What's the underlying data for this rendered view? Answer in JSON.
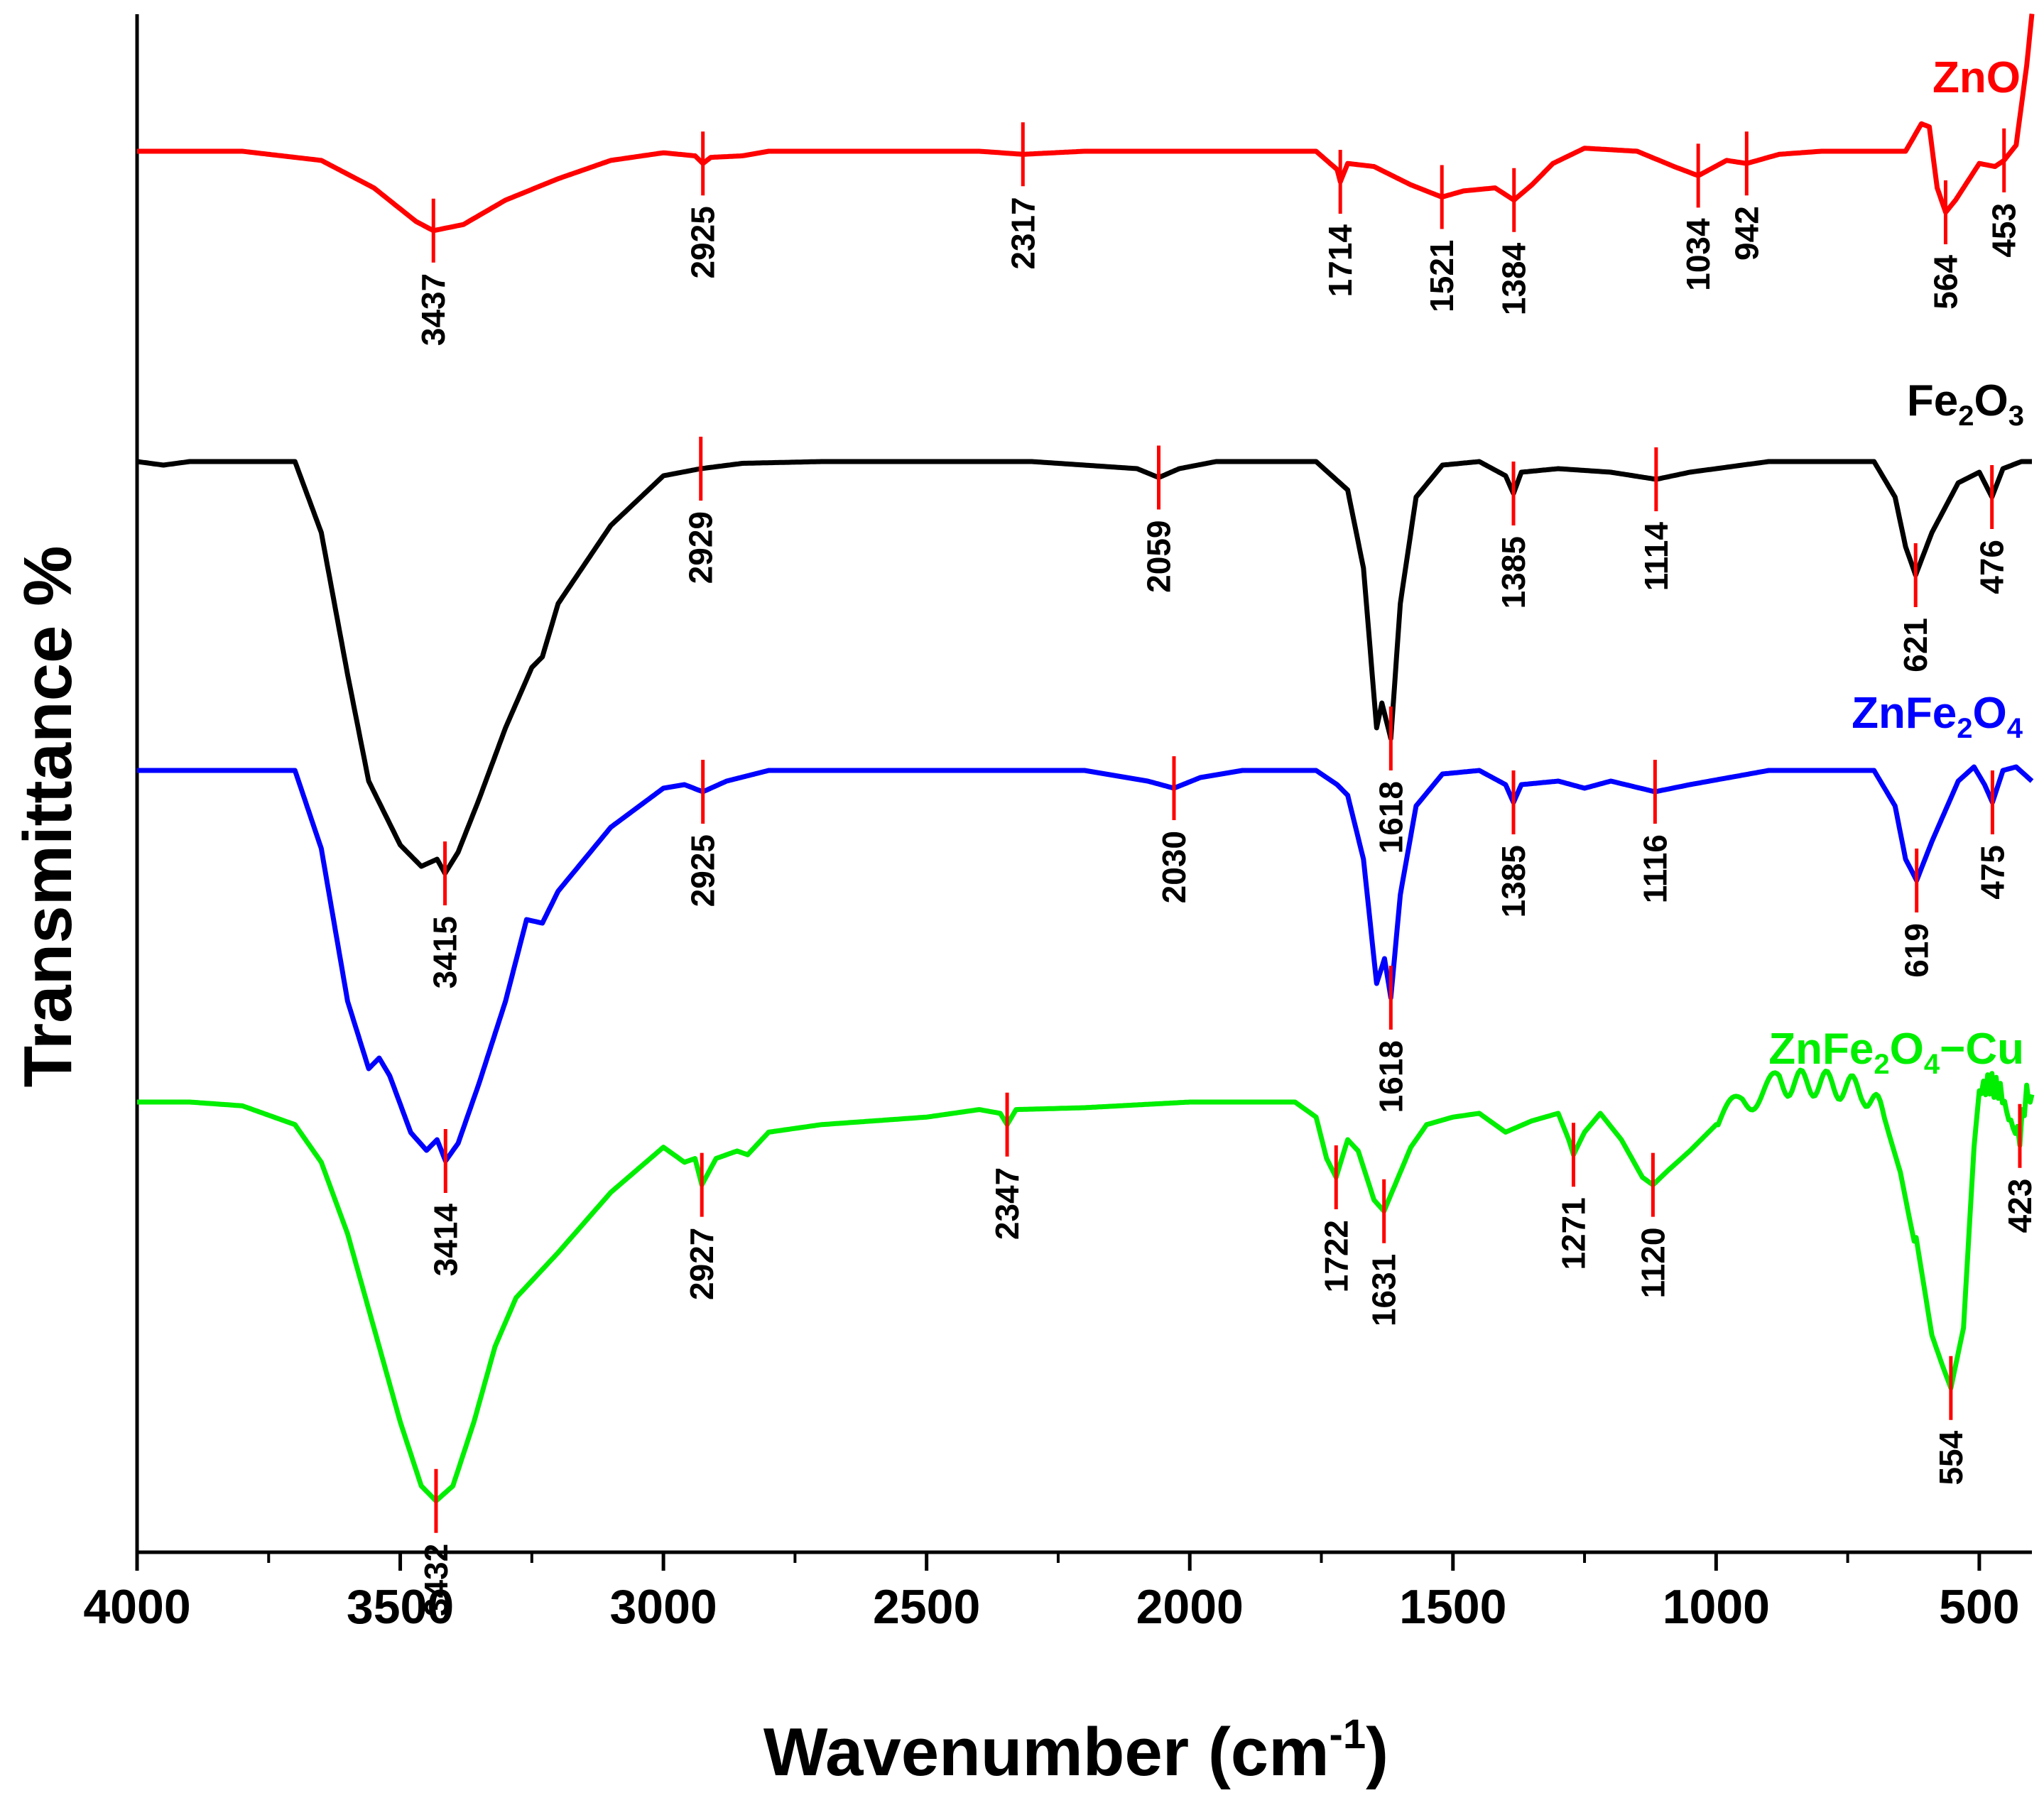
{
  "chart_data": {
    "type": "line",
    "title": "",
    "xlabel_main": "Wavenumber (cm",
    "xlabel_sup": "-1",
    "xlabel_close": ")",
    "ylabel": "Transmittance %",
    "xlim": [
      4000,
      400
    ],
    "x_ticks": [
      4000,
      3500,
      3000,
      2500,
      2000,
      1500,
      1000,
      500
    ],
    "x_tick_labels": [
      "4000",
      "3500",
      "3000",
      "2500",
      "2000",
      "1500",
      "1000",
      "500"
    ],
    "y_ticks_shown": false,
    "series": [
      {
        "name": "ZnO",
        "label_parts": [
          {
            "t": "ZnO",
            "sub": false
          }
        ],
        "color": "#ff0000",
        "points": [
          [
            4000,
            0.0
          ],
          [
            3800,
            0.0
          ],
          [
            3650,
            -0.3
          ],
          [
            3550,
            -1.2
          ],
          [
            3470,
            -2.3
          ],
          [
            3437,
            -2.6
          ],
          [
            3380,
            -2.4
          ],
          [
            3300,
            -1.6
          ],
          [
            3200,
            -0.9
          ],
          [
            3100,
            -0.3
          ],
          [
            3000,
            -0.05
          ],
          [
            2940,
            -0.15
          ],
          [
            2925,
            -0.4
          ],
          [
            2910,
            -0.2
          ],
          [
            2850,
            -0.15
          ],
          [
            2800,
            0.0
          ],
          [
            2400,
            0.0
          ],
          [
            2317,
            -0.1
          ],
          [
            2200,
            0.0
          ],
          [
            1760,
            0.0
          ],
          [
            1720,
            -0.6
          ],
          [
            1714,
            -1.0
          ],
          [
            1700,
            -0.4
          ],
          [
            1650,
            -0.5
          ],
          [
            1580,
            -1.1
          ],
          [
            1521,
            -1.5
          ],
          [
            1480,
            -1.3
          ],
          [
            1420,
            -1.2
          ],
          [
            1384,
            -1.6
          ],
          [
            1350,
            -1.1
          ],
          [
            1310,
            -0.4
          ],
          [
            1250,
            0.1
          ],
          [
            1150,
            0.0
          ],
          [
            1080,
            -0.5
          ],
          [
            1034,
            -0.8
          ],
          [
            980,
            -0.3
          ],
          [
            942,
            -0.4
          ],
          [
            880,
            -0.1
          ],
          [
            800,
            0.0
          ],
          [
            700,
            0.0
          ],
          [
            640,
            0.0
          ],
          [
            610,
            0.9
          ],
          [
            595,
            0.8
          ],
          [
            580,
            -1.2
          ],
          [
            564,
            -2.0
          ],
          [
            545,
            -1.6
          ],
          [
            500,
            -0.4
          ],
          [
            470,
            -0.5
          ],
          [
            453,
            -0.3
          ],
          [
            430,
            0.2
          ],
          [
            410,
            2.8
          ],
          [
            400,
            4.5
          ]
        ],
        "peaks": [
          {
            "x": 3437,
            "label": "3437"
          },
          {
            "x": 2925,
            "label": "2925"
          },
          {
            "x": 2317,
            "label": "2317"
          },
          {
            "x": 1714,
            "label": "1714"
          },
          {
            "x": 1521,
            "label": "1521"
          },
          {
            "x": 1384,
            "label": "1384"
          },
          {
            "x": 1034,
            "label": "1034"
          },
          {
            "x": 942,
            "label": "942"
          },
          {
            "x": 564,
            "label": "564"
          },
          {
            "x": 453,
            "label": "453"
          }
        ]
      },
      {
        "name": "Fe2O3",
        "label_parts": [
          {
            "t": "Fe",
            "sub": false
          },
          {
            "t": "2",
            "sub": true
          },
          {
            "t": "O",
            "sub": false
          },
          {
            "t": "3",
            "sub": true
          }
        ],
        "color": "#000000",
        "points": [
          [
            4000,
            0.0
          ],
          [
            3950,
            -0.1
          ],
          [
            3900,
            0.0
          ],
          [
            3700,
            0.0
          ],
          [
            3650,
            -2.0
          ],
          [
            3600,
            -6.0
          ],
          [
            3560,
            -9.0
          ],
          [
            3540,
            -9.6
          ],
          [
            3500,
            -10.8
          ],
          [
            3460,
            -11.4
          ],
          [
            3430,
            -11.2
          ],
          [
            3415,
            -11.6
          ],
          [
            3390,
            -11.0
          ],
          [
            3350,
            -9.5
          ],
          [
            3300,
            -7.5
          ],
          [
            3250,
            -5.8
          ],
          [
            3230,
            -5.5
          ],
          [
            3200,
            -4.0
          ],
          [
            3100,
            -1.8
          ],
          [
            3000,
            -0.4
          ],
          [
            2929,
            -0.2
          ],
          [
            2850,
            -0.05
          ],
          [
            2700,
            0.0
          ],
          [
            2300,
            0.0
          ],
          [
            2100,
            -0.2
          ],
          [
            2059,
            -0.45
          ],
          [
            2020,
            -0.2
          ],
          [
            1950,
            0.0
          ],
          [
            1760,
            0.0
          ],
          [
            1700,
            -0.8
          ],
          [
            1670,
            -3.0
          ],
          [
            1645,
            -7.5
          ],
          [
            1635,
            -6.8
          ],
          [
            1618,
            -7.8
          ],
          [
            1600,
            -4.0
          ],
          [
            1570,
            -1.0
          ],
          [
            1520,
            -0.1
          ],
          [
            1450,
            0.0
          ],
          [
            1400,
            -0.4
          ],
          [
            1385,
            -0.9
          ],
          [
            1370,
            -0.3
          ],
          [
            1300,
            -0.2
          ],
          [
            1200,
            -0.3
          ],
          [
            1114,
            -0.5
          ],
          [
            1050,
            -0.3
          ],
          [
            900,
            0.0
          ],
          [
            700,
            0.0
          ],
          [
            660,
            -1.0
          ],
          [
            640,
            -2.4
          ],
          [
            621,
            -3.2
          ],
          [
            590,
            -2.0
          ],
          [
            540,
            -0.6
          ],
          [
            500,
            -0.3
          ],
          [
            476,
            -1.0
          ],
          [
            455,
            -0.2
          ],
          [
            420,
            0.0
          ],
          [
            400,
            0.0
          ]
        ],
        "peaks": [
          {
            "x": 3415,
            "label": "3415"
          },
          {
            "x": 2929,
            "label": "2929"
          },
          {
            "x": 2059,
            "label": "2059"
          },
          {
            "x": 1618,
            "label": "1618"
          },
          {
            "x": 1385,
            "label": "1385"
          },
          {
            "x": 1114,
            "label": "1114"
          },
          {
            "x": 621,
            "label": "621"
          },
          {
            "x": 476,
            "label": "476"
          }
        ]
      },
      {
        "name": "ZnFe2O4",
        "label_parts": [
          {
            "t": "ZnFe",
            "sub": false
          },
          {
            "t": "2",
            "sub": true
          },
          {
            "t": "O",
            "sub": false
          },
          {
            "t": "4",
            "sub": true
          }
        ],
        "color": "#0000ff",
        "points": [
          [
            4000,
            0.0
          ],
          [
            3900,
            0.0
          ],
          [
            3700,
            0.0
          ],
          [
            3650,
            -2.2
          ],
          [
            3600,
            -6.5
          ],
          [
            3560,
            -8.4
          ],
          [
            3540,
            -8.1
          ],
          [
            3520,
            -8.6
          ],
          [
            3480,
            -10.2
          ],
          [
            3450,
            -10.7
          ],
          [
            3430,
            -10.4
          ],
          [
            3414,
            -11.0
          ],
          [
            3390,
            -10.5
          ],
          [
            3350,
            -8.8
          ],
          [
            3300,
            -6.5
          ],
          [
            3260,
            -4.2
          ],
          [
            3230,
            -4.3
          ],
          [
            3200,
            -3.4
          ],
          [
            3100,
            -1.6
          ],
          [
            3000,
            -0.5
          ],
          [
            2960,
            -0.4
          ],
          [
            2925,
            -0.6
          ],
          [
            2880,
            -0.3
          ],
          [
            2800,
            0.0
          ],
          [
            2400,
            0.0
          ],
          [
            2200,
            0.0
          ],
          [
            2080,
            -0.3
          ],
          [
            2030,
            -0.5
          ],
          [
            1980,
            -0.2
          ],
          [
            1900,
            0.0
          ],
          [
            1760,
            0.0
          ],
          [
            1720,
            -0.4
          ],
          [
            1700,
            -0.7
          ],
          [
            1670,
            -2.5
          ],
          [
            1645,
            -6.0
          ],
          [
            1630,
            -5.3
          ],
          [
            1618,
            -6.4
          ],
          [
            1600,
            -3.5
          ],
          [
            1570,
            -1.0
          ],
          [
            1520,
            -0.1
          ],
          [
            1450,
            0.0
          ],
          [
            1400,
            -0.4
          ],
          [
            1385,
            -0.9
          ],
          [
            1370,
            -0.4
          ],
          [
            1300,
            -0.3
          ],
          [
            1250,
            -0.5
          ],
          [
            1200,
            -0.3
          ],
          [
            1116,
            -0.6
          ],
          [
            1050,
            -0.4
          ],
          [
            900,
            0.0
          ],
          [
            700,
            0.0
          ],
          [
            660,
            -1.0
          ],
          [
            640,
            -2.5
          ],
          [
            619,
            -3.1
          ],
          [
            590,
            -2.0
          ],
          [
            540,
            -0.3
          ],
          [
            510,
            0.1
          ],
          [
            490,
            -0.4
          ],
          [
            475,
            -0.9
          ],
          [
            455,
            0.0
          ],
          [
            430,
            0.1
          ],
          [
            400,
            -0.3
          ]
        ],
        "peaks": [
          {
            "x": 3414,
            "label": "3414"
          },
          {
            "x": 2925,
            "label": "2925"
          },
          {
            "x": 2030,
            "label": "2030"
          },
          {
            "x": 1618,
            "label": "1618"
          },
          {
            "x": 1385,
            "label": "1385"
          },
          {
            "x": 1116,
            "label": "1116"
          },
          {
            "x": 619,
            "label": "619"
          },
          {
            "x": 475,
            "label": "475"
          }
        ]
      },
      {
        "name": "ZnFe2O4-Cu",
        "label_parts": [
          {
            "t": "ZnFe",
            "sub": false
          },
          {
            "t": "2",
            "sub": true
          },
          {
            "t": "O",
            "sub": false
          },
          {
            "t": "4",
            "sub": true
          },
          {
            "t": "−Cu",
            "sub": false
          }
        ],
        "color": "#00ee00",
        "points": [
          [
            4000,
            0.0
          ],
          [
            3900,
            0.0
          ],
          [
            3800,
            -0.1
          ],
          [
            3700,
            -0.6
          ],
          [
            3650,
            -1.6
          ],
          [
            3600,
            -3.5
          ],
          [
            3550,
            -6.0
          ],
          [
            3500,
            -8.5
          ],
          [
            3460,
            -10.2
          ],
          [
            3432,
            -10.6
          ],
          [
            3400,
            -10.2
          ],
          [
            3360,
            -8.5
          ],
          [
            3320,
            -6.5
          ],
          [
            3280,
            -5.2
          ],
          [
            3200,
            -4.0
          ],
          [
            3100,
            -2.4
          ],
          [
            3000,
            -1.2
          ],
          [
            2960,
            -1.6
          ],
          [
            2940,
            -1.5
          ],
          [
            2927,
            -2.2
          ],
          [
            2900,
            -1.5
          ],
          [
            2860,
            -1.3
          ],
          [
            2840,
            -1.4
          ],
          [
            2800,
            -0.8
          ],
          [
            2700,
            -0.6
          ],
          [
            2500,
            -0.4
          ],
          [
            2400,
            -0.2
          ],
          [
            2360,
            -0.3
          ],
          [
            2347,
            -0.6
          ],
          [
            2330,
            -0.2
          ],
          [
            2200,
            -0.15
          ],
          [
            2000,
            0.0
          ],
          [
            1800,
            0.0
          ],
          [
            1760,
            -0.4
          ],
          [
            1740,
            -1.5
          ],
          [
            1722,
            -2.0
          ],
          [
            1700,
            -1.0
          ],
          [
            1680,
            -1.3
          ],
          [
            1650,
            -2.6
          ],
          [
            1631,
            -2.9
          ],
          [
            1610,
            -2.2
          ],
          [
            1580,
            -1.2
          ],
          [
            1550,
            -0.6
          ],
          [
            1500,
            -0.4
          ],
          [
            1450,
            -0.3
          ],
          [
            1400,
            -0.8
          ],
          [
            1350,
            -0.5
          ],
          [
            1300,
            -0.3
          ],
          [
            1280,
            -1.0
          ],
          [
            1271,
            -1.4
          ],
          [
            1250,
            -0.8
          ],
          [
            1220,
            -0.3
          ],
          [
            1180,
            -1.0
          ],
          [
            1140,
            -2.0
          ],
          [
            1120,
            -2.2
          ],
          [
            1090,
            -1.8
          ],
          [
            1050,
            -1.3
          ],
          [
            1000,
            -0.6
          ],
          [
            950,
            0.0
          ],
          [
            880,
            0.5
          ],
          [
            800,
            0.5
          ],
          [
            720,
            0.3
          ],
          [
            680,
            -0.4
          ],
          [
            650,
            -1.6
          ],
          [
            620,
            -3.6
          ],
          [
            590,
            -6.2
          ],
          [
            570,
            -7.0
          ],
          [
            554,
            -7.6
          ],
          [
            530,
            -6.0
          ],
          [
            510,
            -1.2
          ],
          [
            500,
            0.3
          ],
          [
            480,
            0.5
          ],
          [
            460,
            0.3
          ],
          [
            440,
            -0.6
          ],
          [
            423,
            -0.9
          ],
          [
            410,
            0.3
          ],
          [
            400,
            0.2
          ]
        ],
        "peaks": [
          {
            "x": 3432,
            "label": "3432"
          },
          {
            "x": 2927,
            "label": "2927"
          },
          {
            "x": 2347,
            "label": "2347"
          },
          {
            "x": 1722,
            "label": "1722"
          },
          {
            "x": 1631,
            "label": "1631"
          },
          {
            "x": 1271,
            "label": "1271"
          },
          {
            "x": 1120,
            "label": "1120"
          },
          {
            "x": 554,
            "label": "554"
          },
          {
            "x": 423,
            "label": "423"
          }
        ]
      }
    ]
  }
}
